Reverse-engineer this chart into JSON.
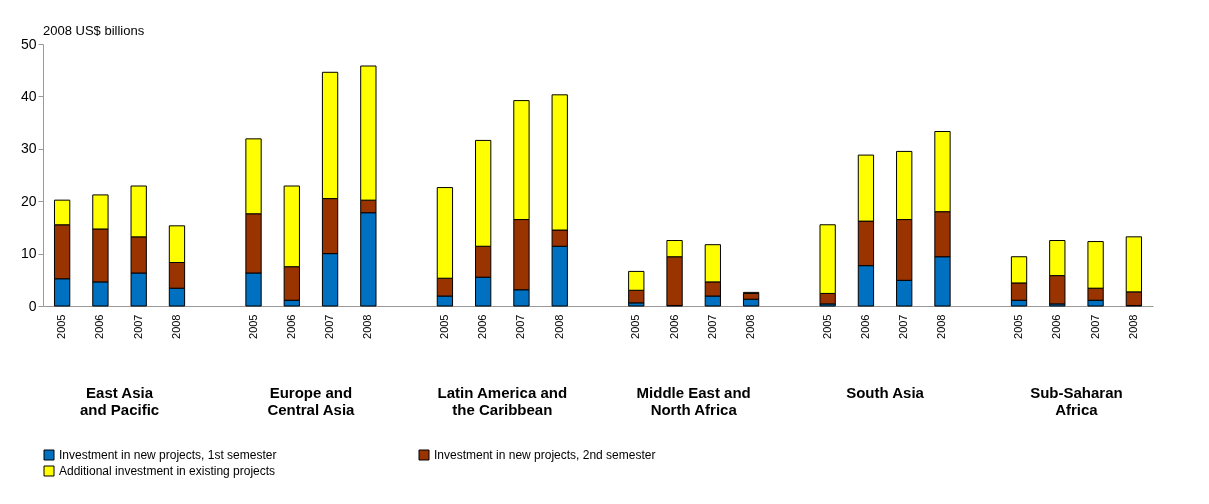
{
  "chart_data": {
    "type": "bar",
    "stacked": true,
    "ylabel": "2008 US$ billions",
    "categories": [
      "2005",
      "2006",
      "2007",
      "2008",
      null,
      "2005",
      "2006",
      "2007",
      "2008",
      null,
      "2005",
      "2006",
      "2007",
      "2008",
      null,
      "2005",
      "2006",
      "2007",
      "2008",
      null,
      "2005",
      "2006",
      "2007",
      "2008",
      null,
      "2005",
      "2006",
      "2007",
      "2008"
    ],
    "annotations": [
      "East Asia\nand Pacific",
      "Europe and\nCentral Asia",
      "Latin America and\nthe Caribbean",
      "Middle East and\nNorth Africa",
      "South Asia",
      "Sub-Saharan\nAfrica"
    ],
    "series": [
      {
        "name": "Investment in new projects, 1st semester",
        "color": "#0070c0",
        "values": [
          5.2,
          4.6,
          6.3,
          3.4,
          null,
          6.3,
          1.1,
          10.0,
          17.8,
          null,
          1.9,
          5.5,
          3.1,
          11.4,
          null,
          0.6,
          0.1,
          1.9,
          1.3,
          null,
          0.4,
          7.7,
          4.9,
          9.4,
          null,
          1.1,
          0.4,
          1.1,
          0.1
        ]
      },
      {
        "name": "Investment in new projects, 2nd semester",
        "color": "#993300",
        "values": [
          10.3,
          10.1,
          6.9,
          4.9,
          null,
          11.3,
          6.4,
          10.5,
          2.4,
          null,
          3.4,
          5.9,
          13.4,
          3.1,
          null,
          2.4,
          9.3,
          2.7,
          1.1,
          null,
          2.0,
          8.5,
          11.6,
          8.6,
          null,
          3.3,
          5.4,
          2.3,
          2.6
        ]
      },
      {
        "name": "Additional investment in existing projects",
        "color": "#ffff00",
        "values": [
          4.7,
          6.5,
          9.7,
          7.0,
          null,
          14.3,
          15.4,
          24.1,
          25.6,
          null,
          17.3,
          20.2,
          22.7,
          25.8,
          null,
          3.6,
          3.1,
          7.1,
          0.2,
          null,
          13.1,
          12.6,
          13.0,
          15.3,
          null,
          5.0,
          6.7,
          8.9,
          10.5
        ]
      }
    ],
    "ylim": [
      0,
      50
    ],
    "yticks": [
      0,
      10,
      20,
      30,
      40,
      50
    ],
    "grid": false,
    "legend": "bottom"
  }
}
